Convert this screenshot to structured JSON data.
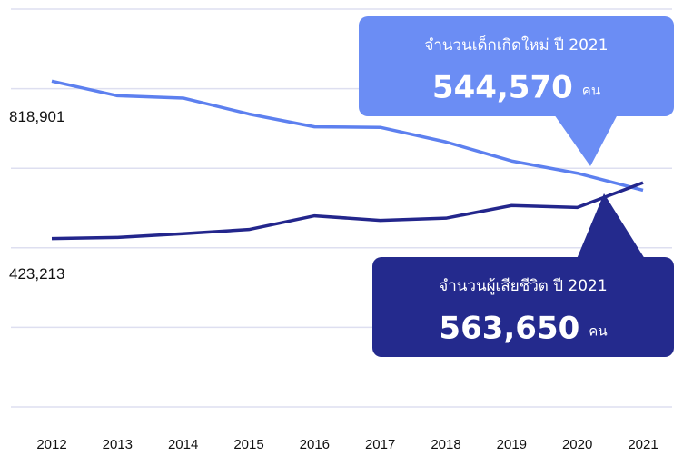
{
  "chart_data": {
    "type": "line",
    "categories": [
      "2012",
      "2013",
      "2014",
      "2015",
      "2016",
      "2017",
      "2018",
      "2019",
      "2020",
      "2021"
    ],
    "series": [
      {
        "color": "#5d80ef",
        "box_color": "#6b8df4",
        "values": [
          818901,
          782129,
          776370,
          736352,
          704058,
          702755,
          666109,
          618193,
          587368,
          544570
        ],
        "value_labels": [
          "818,901",
          null,
          null,
          null,
          null,
          null,
          null,
          null,
          null,
          "544,570"
        ],
        "callout_title": "จำนวนเด็กเกิดใหม่ ปี 2021",
        "unit": "คน"
      },
      {
        "color": "#23268c",
        "box_color": "#242a8d",
        "values": [
          423213,
          426162,
          435624,
          445964,
          480434,
          468911,
          474491,
          506211,
          501438,
          563650
        ],
        "value_labels": [
          "423,213",
          null,
          null,
          null,
          null,
          null,
          null,
          null,
          null,
          "563,650"
        ],
        "callout_title": "จำนวนผู้เสียชีวิต ปี 2021",
        "unit": "คน"
      }
    ],
    "ylim": [
      0,
      1000000
    ],
    "yticks": [
      0,
      200000,
      400000,
      600000,
      800000,
      1000000
    ],
    "grid": true
  }
}
